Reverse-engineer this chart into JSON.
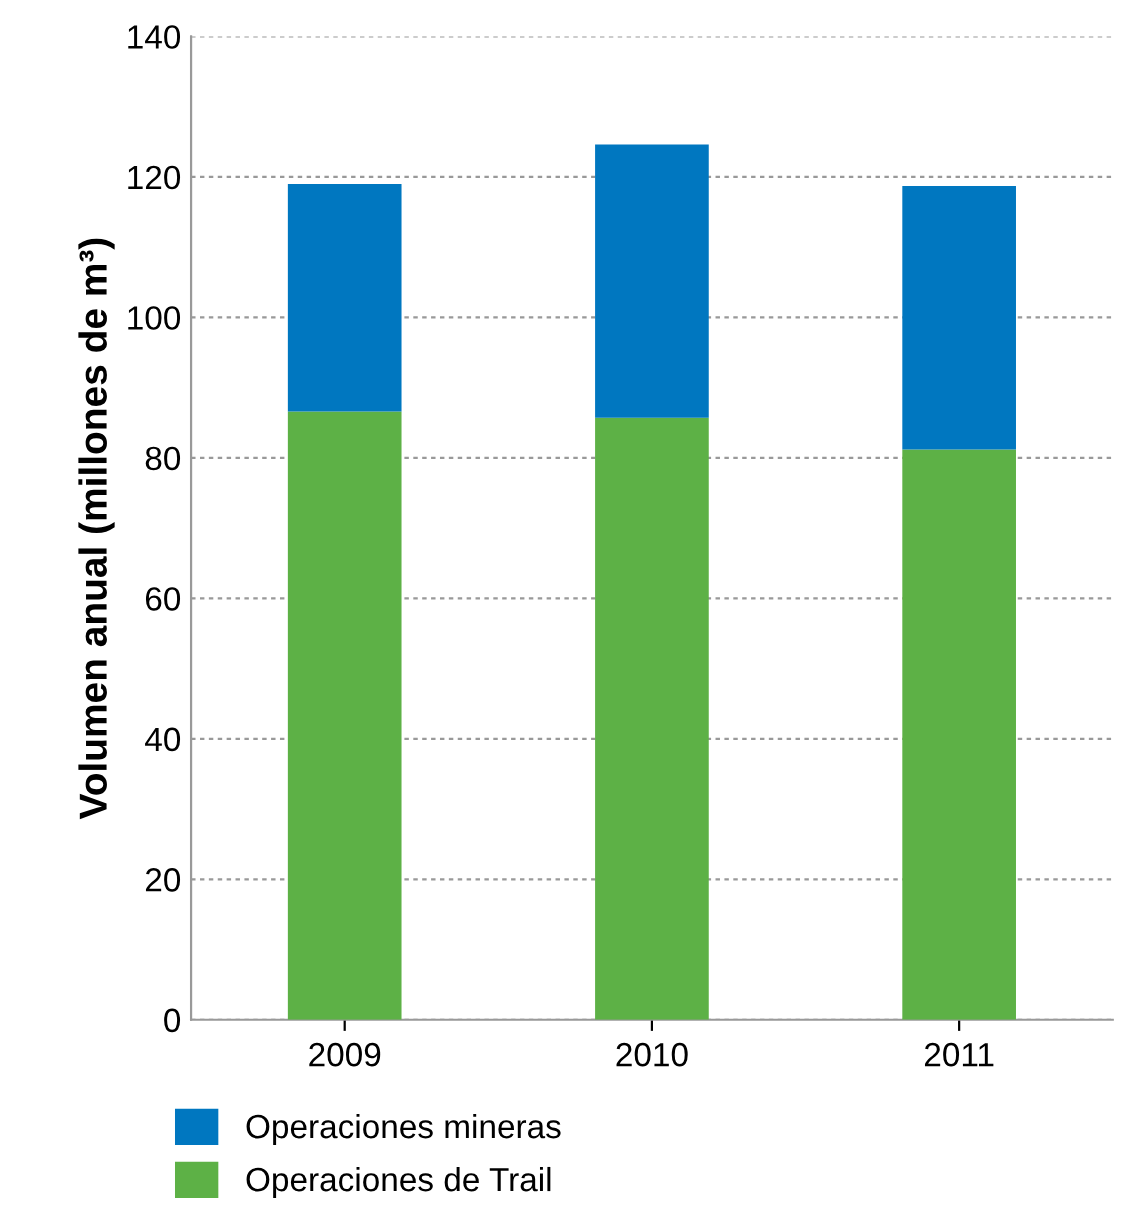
{
  "chart_data": {
    "type": "bar",
    "stacked": true,
    "ylabel": "Volumen anual (millones de m³)",
    "categories": [
      "2009",
      "2010",
      "2011"
    ],
    "series": [
      {
        "name": "Operaciones de Trail",
        "color": "#5db146",
        "values": [
          86.6,
          85.7,
          81.2
        ]
      },
      {
        "name": "Operaciones mineras",
        "color": "#0077c0",
        "values": [
          32.4,
          38.9,
          37.5
        ]
      }
    ],
    "ylim": [
      0,
      140
    ],
    "yticks": [
      0,
      20,
      40,
      60,
      80,
      100,
      120,
      140
    ],
    "grid": "y",
    "legend": "bottom"
  }
}
